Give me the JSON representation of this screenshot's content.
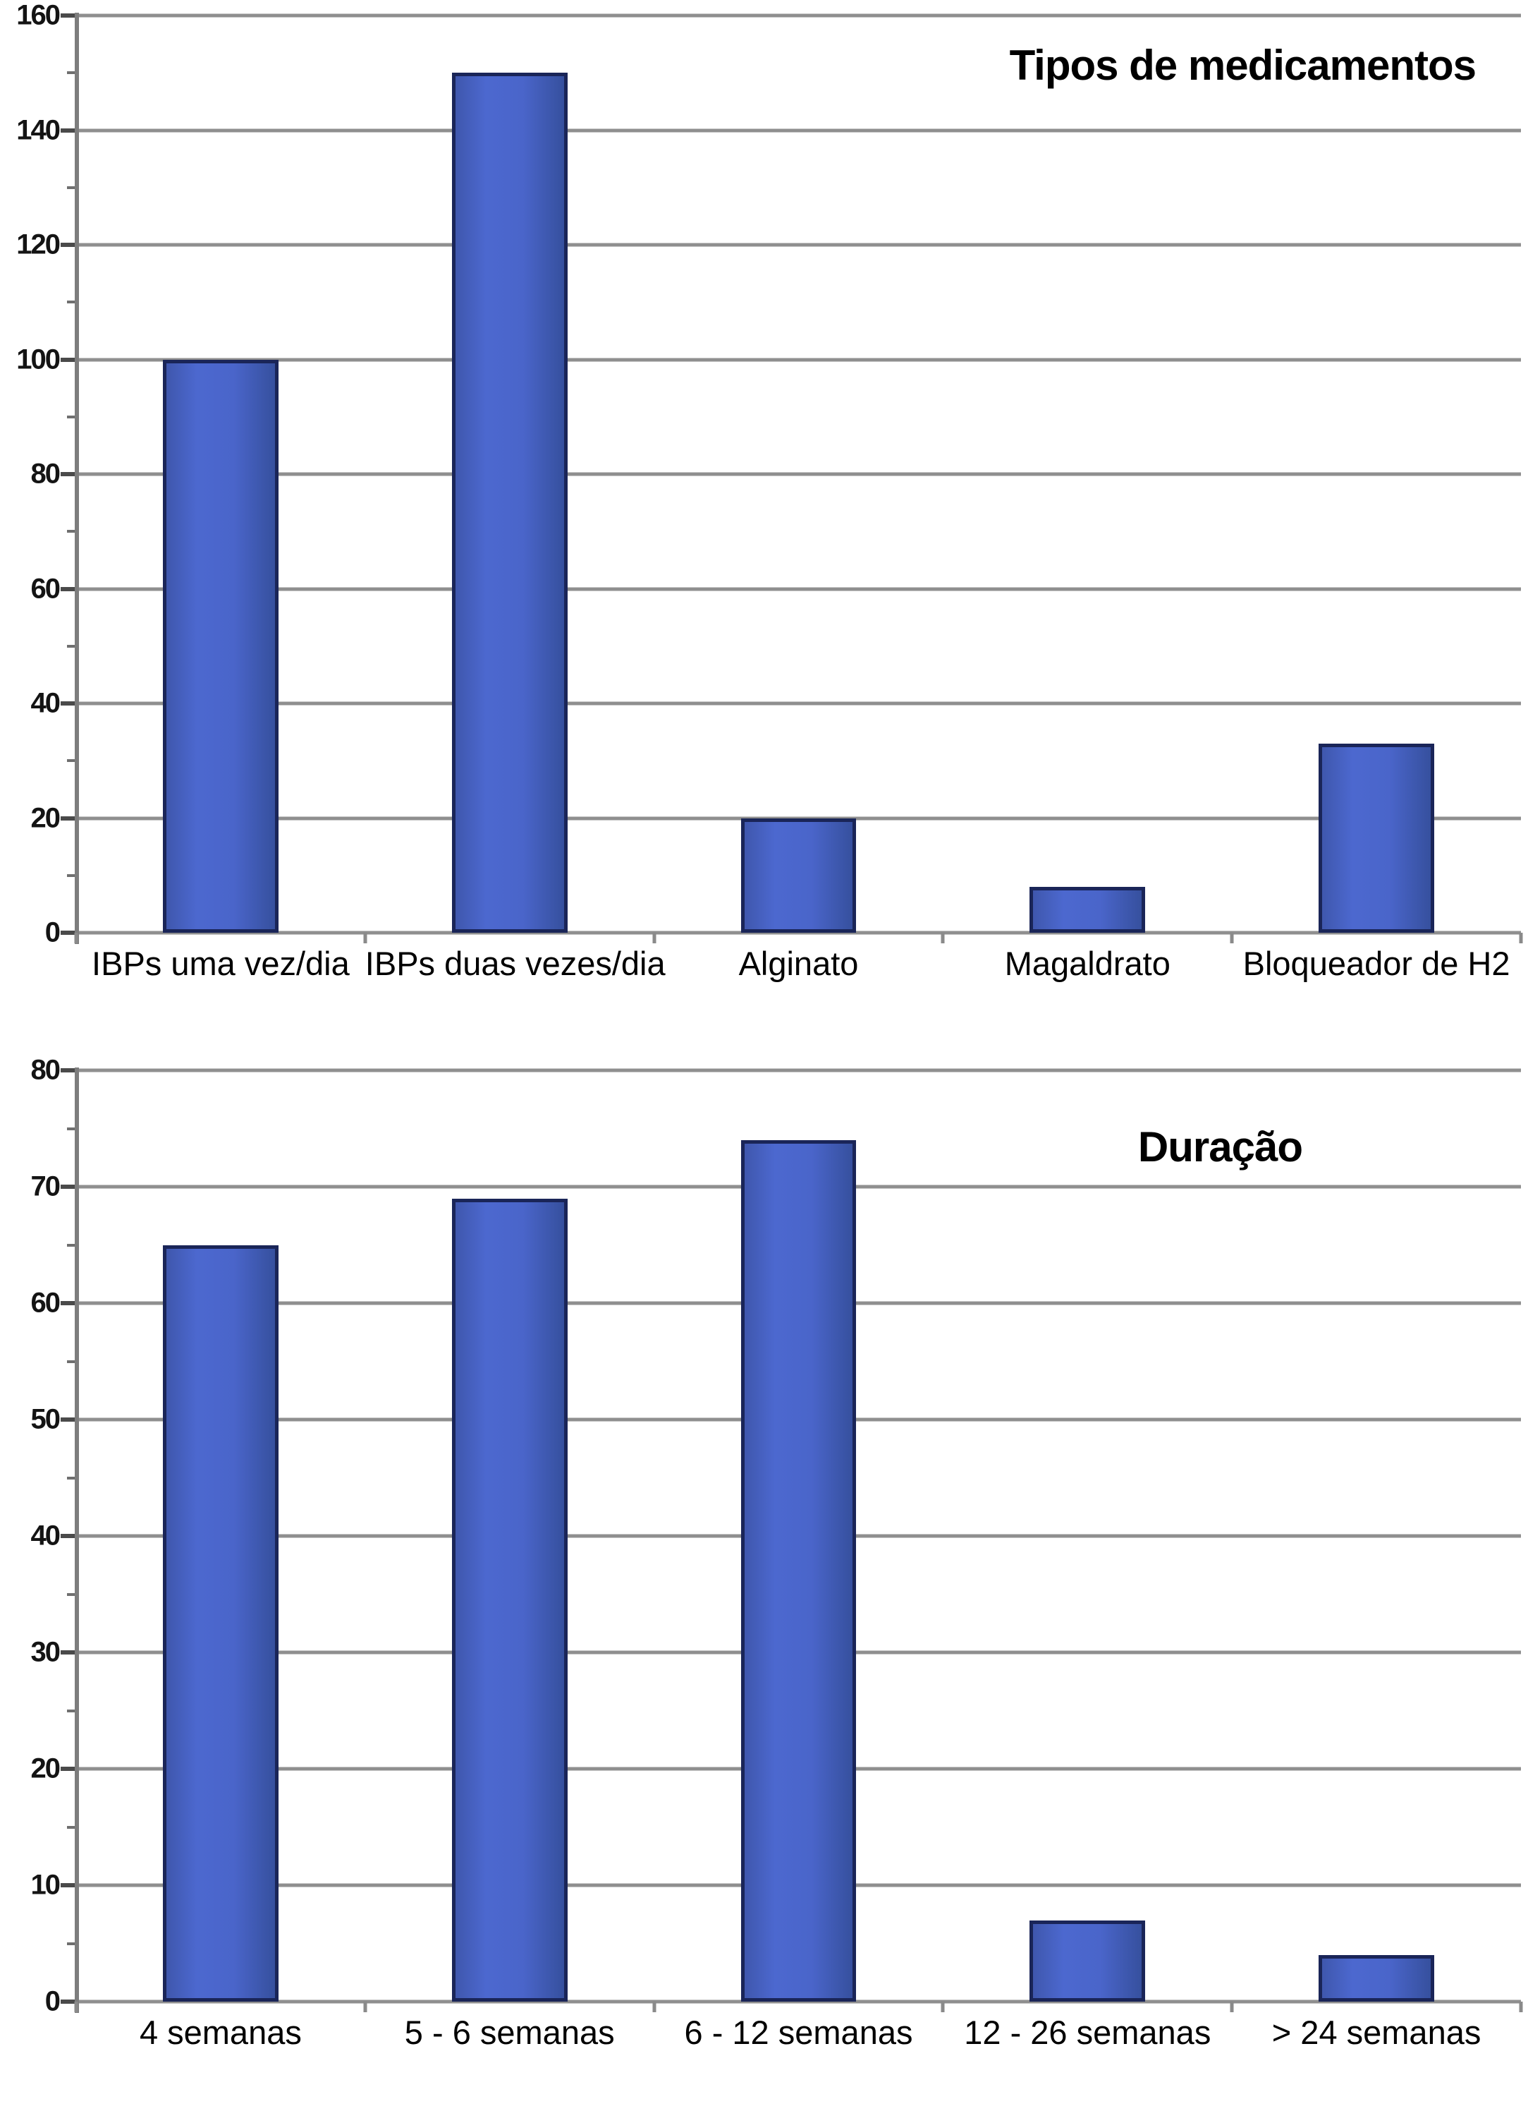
{
  "page": {
    "background": "#ffffff",
    "text_color": "#000000"
  },
  "style": {
    "bar_fill": "#4a65ca",
    "bar_border": "#1a2558",
    "grid_color": "#8f8f8f",
    "axis_color": "#7d7d7d"
  },
  "chart_data": [
    {
      "type": "bar",
      "title": "Tipos de medicamentos",
      "categories": [
        "IBPs uma vez/dia",
        "IBPs duas vezes/dia",
        "Alginato",
        "Magaldrato",
        "Bloqueador de H2"
      ],
      "values": [
        100,
        150,
        20,
        8,
        33
      ],
      "xlabel": "",
      "ylabel": "",
      "ylim": [
        0,
        160
      ],
      "ytick_step": 20,
      "ytick_labels": [
        "0",
        "20",
        "40",
        "60",
        "80",
        "100",
        "120",
        "140",
        "160"
      ],
      "grid": true,
      "legend_position": "none",
      "title_position": "top-right"
    },
    {
      "type": "bar",
      "title": "Duração",
      "categories": [
        "4 semanas",
        "5 - 6 semanas",
        "6 - 12 semanas",
        "12 - 26 semanas",
        "> 24 semanas"
      ],
      "values": [
        65,
        69,
        74,
        7,
        4
      ],
      "xlabel": "",
      "ylabel": "",
      "ylim": [
        0,
        80
      ],
      "ytick_step": 10,
      "ytick_labels": [
        "0",
        "10",
        "20",
        "30",
        "40",
        "50",
        "60",
        "70",
        "80"
      ],
      "grid": true,
      "legend_position": "none",
      "title_position": "top-right"
    }
  ]
}
